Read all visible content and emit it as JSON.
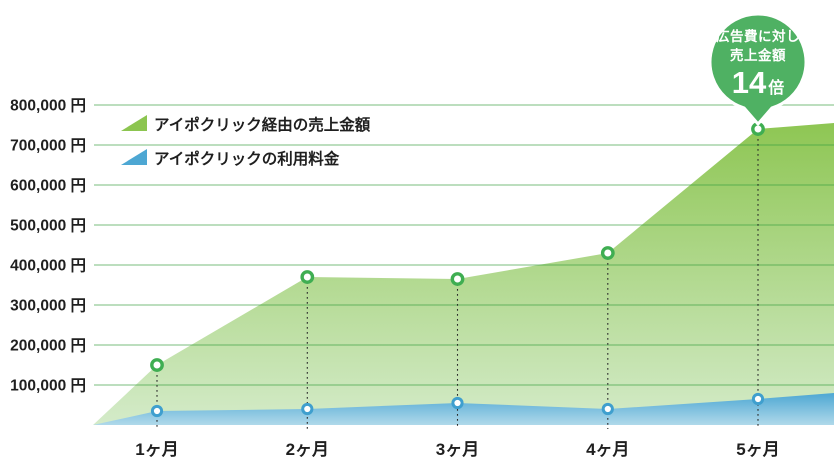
{
  "chart_data": {
    "type": "area",
    "title": "",
    "categories": [
      "1ヶ月",
      "2ヶ月",
      "3ヶ月",
      "4ヶ月",
      "5ヶ月"
    ],
    "series": [
      {
        "name": "アイポクリック経由の売上金額",
        "color_top": "#8cc550",
        "color_bottom": "#d4ebc9",
        "marker_color": "#3fae52",
        "values": [
          150000,
          370000,
          365000,
          430000,
          740000
        ],
        "right_edge_value": 755000
      },
      {
        "name": "アイポクリックの利用料金",
        "color_top": "#4da7d3",
        "color_bottom": "#b0d9ea",
        "marker_color": "#3f9fce",
        "values": [
          35000,
          40000,
          55000,
          40000,
          65000
        ],
        "right_edge_value": 80000
      }
    ],
    "y_axis": {
      "min": 0,
      "max": 800000,
      "tick_step": 100000,
      "ticks": [
        {
          "value": 100000,
          "label": "100,000 円"
        },
        {
          "value": 200000,
          "label": "200,000 円"
        },
        {
          "value": 300000,
          "label": "300,000 円"
        },
        {
          "value": 400000,
          "label": "400,000 円"
        },
        {
          "value": 500000,
          "label": "500,000 円"
        },
        {
          "value": 600000,
          "label": "600,000 円"
        },
        {
          "value": 700000,
          "label": "700,000 円"
        },
        {
          "value": 800000,
          "label": "800,000 円"
        }
      ]
    },
    "xlabel": "",
    "ylabel": "",
    "grid": true,
    "legend_position": "top-left"
  },
  "badge": {
    "line1": "広告費に対し",
    "line2": "売上金額",
    "value": "14",
    "unit": "倍"
  },
  "colors": {
    "grid": "#3da142",
    "text": "#1f1f1f",
    "badge": "#4fb163",
    "guide_line": "#2a2a2a",
    "background": "#ffffff"
  }
}
